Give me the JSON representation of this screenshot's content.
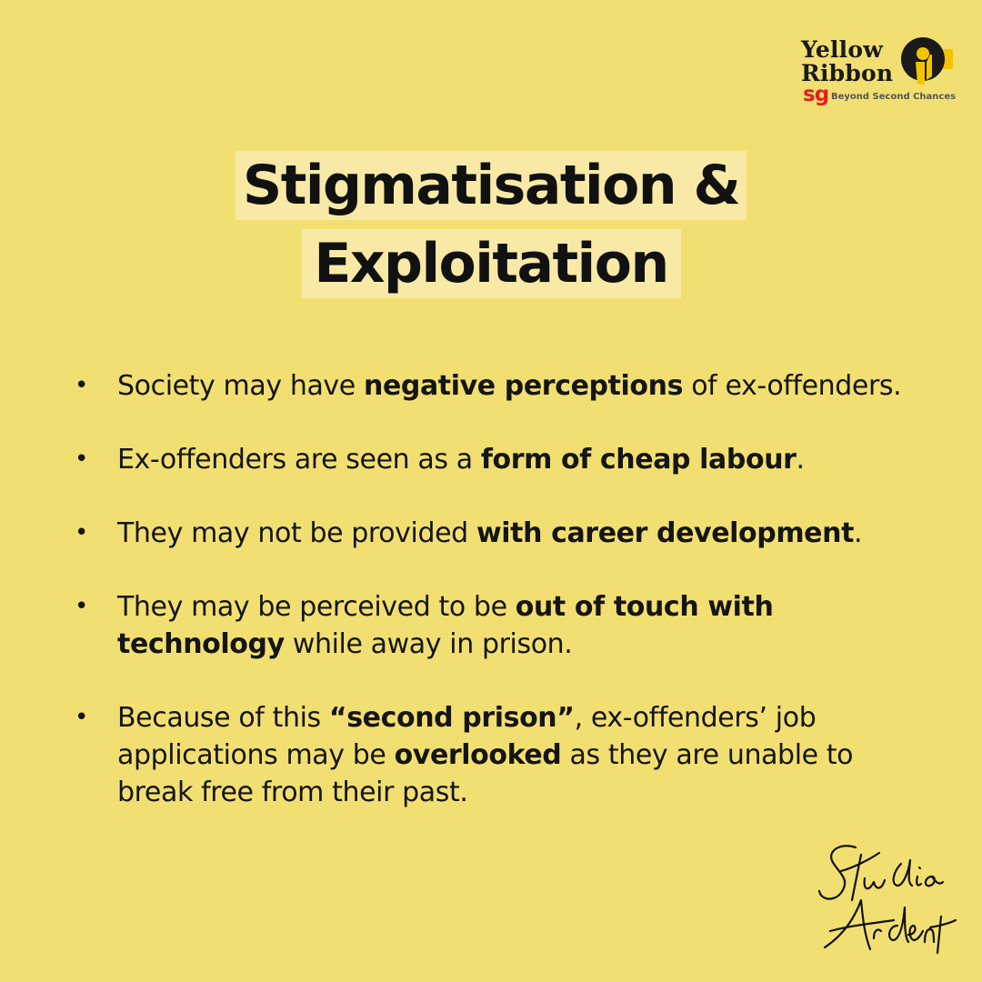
{
  "logo": {
    "line1": "Yellow",
    "line2": "Ribbon",
    "sg": "sg",
    "tagline": "Beyond Second Chances",
    "emblem_icon": "yellow-ribbon-icon",
    "colors": {
      "ribbon": "#F5C400",
      "text": "#1a1a1a",
      "sg": "#E0201B"
    }
  },
  "title": {
    "line1": "Stigmatisation &",
    "line2": "Exploitation",
    "highlight_color": "#F8EAA6"
  },
  "bullets": [
    {
      "pre": "Society may have ",
      "bold": "negative perceptions",
      "post": " of ex-offenders."
    },
    {
      "pre": "Ex-offenders are seen as a ",
      "bold": "form of cheap labour",
      "post": "."
    },
    {
      "pre": "They may not be provided ",
      "bold": "with career development",
      "post": "."
    },
    {
      "pre": "They may be perceived to be ",
      "bold": "out of touch with technology",
      "post": " while away in prison."
    },
    {
      "pre": "Because of this ",
      "bold": "“second prison”",
      "mid": ", ex-offenders’ job applications may be ",
      "bold2": "overlooked",
      "post": " as they are unable to break free from their past."
    }
  ],
  "bullet_glyph": "•",
  "signature": {
    "line1": "Studio",
    "line2": "Ardent"
  },
  "background_color": "#F2DF72"
}
